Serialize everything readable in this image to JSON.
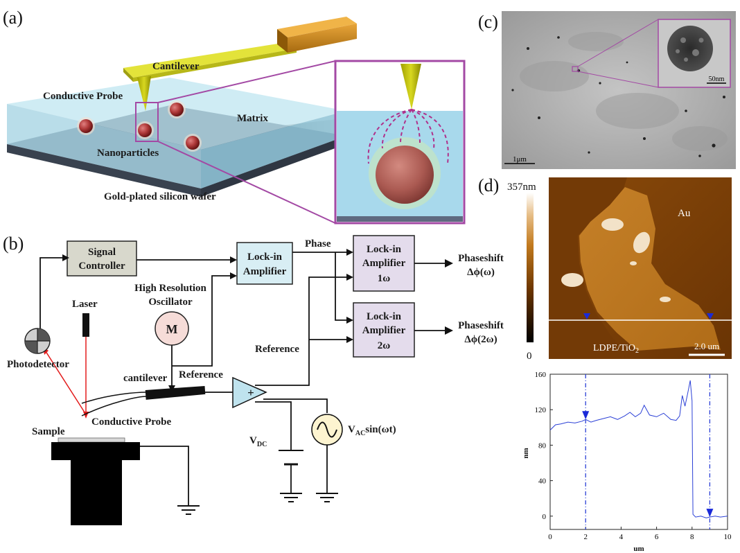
{
  "panels": {
    "a": {
      "label": "(a)",
      "cantilever": "Cantilever",
      "conductive_probe": "Conductive Probe",
      "matrix": "Matrix",
      "nanoparticles": "Nanoparticles",
      "wafer": "Gold-plated silicon wafer"
    },
    "b": {
      "label": "(b)",
      "signal_controller_1": "Signal",
      "signal_controller_2": "Controller",
      "lockin_main_1": "Lock-in",
      "lockin_main_2": "Amplifier",
      "phase": "Phase",
      "lockin_1w_1": "Lock-in",
      "lockin_1w_2": "Amplifier",
      "lockin_1w_3": "1ω",
      "lockin_2w_1": "Lock-in",
      "lockin_2w_2": "Amplifier",
      "lockin_2w_3": "2ω",
      "phaseshift1_1": "Phaseshift",
      "phaseshift1_2": "Δϕ(ω)",
      "phaseshift2_1": "Phaseshift",
      "phaseshift2_2": "Δϕ(2ω)",
      "oscillator_1": "High Resolution",
      "oscillator_2": "Oscillator",
      "motor": "M",
      "laser": "Laser",
      "reference_1": "Reference",
      "reference_2": "Reference",
      "photodetector": "Photodetector",
      "cantilever": "cantilever",
      "conductive_probe": "Conductive Probe",
      "sample": "Sample",
      "plus": "+",
      "vdc_main": "V",
      "vdc_sub": "DC",
      "vac_main": "V",
      "vac_sub": "AC",
      "vac_rest": "sin(ωt)"
    },
    "c": {
      "label": "(c)",
      "scale_main": "1μm",
      "scale_inset": "50nm"
    },
    "d": {
      "label": "(d)",
      "colorbar_max": "357nm",
      "colorbar_min": "0",
      "au": "Au",
      "sample_main": "LDPE/TiO",
      "sample_sub": "2",
      "scale": "2.0 um"
    }
  },
  "chart_data": {
    "type": "line",
    "xlabel": "um",
    "ylabel": "nm",
    "xlim": [
      0,
      10
    ],
    "ylim": [
      -15,
      160
    ],
    "xticks": [
      0,
      2,
      4,
      6,
      8,
      10
    ],
    "yticks": [
      0,
      40,
      80,
      120,
      160
    ],
    "markers_x": [
      2,
      9
    ],
    "series": [
      {
        "color": "#2a3fd6",
        "x": [
          0,
          0.3,
          0.6,
          1.0,
          1.4,
          1.8,
          2.0,
          2.3,
          2.6,
          3.0,
          3.4,
          3.8,
          4.2,
          4.5,
          4.8,
          5.1,
          5.3,
          5.6,
          6.0,
          6.4,
          6.8,
          7.1,
          7.3,
          7.45,
          7.6,
          7.75,
          7.9,
          8.0,
          8.05,
          8.2,
          8.5,
          8.8,
          9.0,
          9.3,
          9.6,
          10.0
        ],
        "y": [
          97,
          103,
          104,
          106,
          105,
          107,
          109,
          106,
          108,
          110,
          112,
          109,
          113,
          117,
          112,
          116,
          125,
          114,
          112,
          116,
          109,
          108,
          113,
          136,
          124,
          138,
          153,
          130,
          2,
          -1,
          0,
          -2,
          -1,
          0,
          -1,
          0
        ]
      }
    ]
  }
}
